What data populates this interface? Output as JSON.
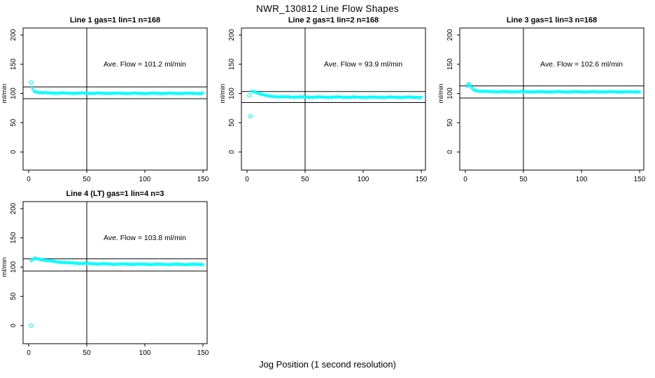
{
  "figure_title": "NWR_130812  Line Flow Shapes",
  "colors": {
    "marker": "#00FFFF",
    "axis": "#000000",
    "background": "#FFFFFF"
  },
  "chart_data": {
    "type": "scatter",
    "title": "NWR_130812  Line Flow Shapes",
    "xlabel": "Jog Position (1 second resolution)",
    "ylabel": "ml/min",
    "x_ticks": [
      0,
      50,
      100,
      150
    ],
    "y_ticks": [
      0,
      50,
      100,
      150,
      200
    ],
    "x_range": [
      -4.8,
      153.6
    ],
    "y_range": [
      -31,
      212
    ],
    "grid": false,
    "legend": "none",
    "marker": {
      "shape": "open-circle",
      "color": "#00FFFF"
    },
    "panels": [
      {
        "title": "Line 1 gas=1 lin=1 n=168",
        "line": 1,
        "gas": 1,
        "lin": 1,
        "n": 168,
        "ave_flow": 101.2,
        "ave_flow_label": "Ave. Flow =  101.2  ml/min",
        "vline_x": 50,
        "hline_upper": 111.3,
        "hline_lower": 91.1,
        "start_points": [
          [
            2,
            119
          ]
        ],
        "outlier_points": [],
        "band": {
          "x_start": 3,
          "x_end": 150,
          "jitter": 0.8,
          "anchors": [
            [
              3,
              110
            ],
            [
              4,
              106
            ],
            [
              5,
              103.5
            ],
            [
              8,
              102
            ],
            [
              12,
              101.2
            ],
            [
              20,
              100.8
            ],
            [
              40,
              100.5
            ],
            [
              80,
              100.3
            ],
            [
              150,
              100.2
            ]
          ]
        }
      },
      {
        "title": "Line 2 gas=1 lin=2 n=168",
        "line": 2,
        "gas": 1,
        "lin": 2,
        "n": 168,
        "ave_flow": 93.9,
        "ave_flow_label": "Ave. Flow =  93.9  ml/min",
        "vline_x": 50,
        "hline_upper": 103.3,
        "hline_lower": 84.5,
        "start_points": [
          [
            2,
            97
          ]
        ],
        "outlier_points": [
          [
            3,
            61
          ]
        ],
        "band": {
          "x_start": 4,
          "x_end": 150,
          "jitter": 0.9,
          "anchors": [
            [
              4,
              104
            ],
            [
              6,
              103.5
            ],
            [
              8,
              102
            ],
            [
              12,
              99
            ],
            [
              16,
              96.5
            ],
            [
              22,
              95
            ],
            [
              30,
              94.2
            ],
            [
              50,
              93.8
            ],
            [
              100,
              93.6
            ],
            [
              150,
              93.5
            ]
          ]
        }
      },
      {
        "title": "Line 3 gas=1 lin=3 n=168",
        "line": 3,
        "gas": 1,
        "lin": 3,
        "n": 168,
        "ave_flow": 102.6,
        "ave_flow_label": "Ave. Flow =  102.6  ml/min",
        "vline_x": 50,
        "hline_upper": 112.9,
        "hline_lower": 92.3,
        "start_points": [
          [
            2,
            113
          ],
          [
            3,
            116
          ]
        ],
        "outlier_points": [],
        "band": {
          "x_start": 3,
          "x_end": 150,
          "jitter": 0.8,
          "anchors": [
            [
              3,
              116
            ],
            [
              4,
              114
            ],
            [
              5,
              110.5
            ],
            [
              7,
              106.5
            ],
            [
              10,
              104.5
            ],
            [
              14,
              103.6
            ],
            [
              25,
              103.2
            ],
            [
              60,
              103
            ],
            [
              150,
              102.8
            ]
          ]
        }
      },
      {
        "title": "Line 4 (LT) gas=1 lin=4 n=3",
        "line": 4,
        "lt": true,
        "gas": 1,
        "lin": 4,
        "n": 3,
        "ave_flow": 103.8,
        "ave_flow_label": "Ave. Flow =  103.8  ml/min",
        "vline_x": 50,
        "hline_upper": 114.2,
        "hline_lower": 93.4,
        "start_points": [],
        "outlier_points": [
          [
            2,
            0
          ]
        ],
        "band": {
          "x_start": 2,
          "x_end": 150,
          "jitter": 1.0,
          "anchors": [
            [
              2,
              110
            ],
            [
              3,
              112.5
            ],
            [
              5,
              114.5
            ],
            [
              8,
              114
            ],
            [
              12,
              112.5
            ],
            [
              18,
              110.5
            ],
            [
              25,
              108.8
            ],
            [
              35,
              107.2
            ],
            [
              50,
              106
            ],
            [
              70,
              105.2
            ],
            [
              100,
              104.8
            ],
            [
              150,
              104.5
            ]
          ]
        }
      }
    ]
  }
}
